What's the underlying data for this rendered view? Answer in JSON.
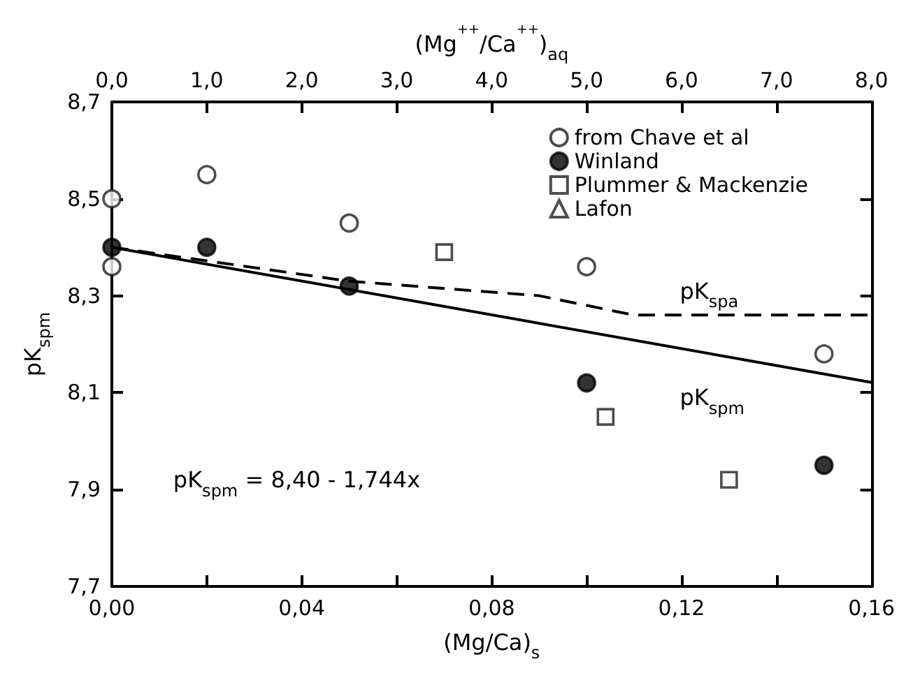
{
  "chart_data": {
    "type": "scatter",
    "xlabel": "(Mg/Ca)$_{s}$",
    "ylabel": "pK$_{spm}$",
    "x2label": "(Mg$^{++}$/Ca$^{++}$)$_{aq}$",
    "xlim": [
      0,
      0.16
    ],
    "xticks": [
      {
        "value": 0,
        "label": "0,00"
      },
      {
        "value": 0.02,
        "label": null
      },
      {
        "value": 0.04,
        "label": "0,04"
      },
      {
        "value": 0.06,
        "label": null
      },
      {
        "value": 0.08,
        "label": "0,08"
      },
      {
        "value": 0.1,
        "label": null
      },
      {
        "value": 0.12,
        "label": "0,12"
      },
      {
        "value": 0.14,
        "label": null
      },
      {
        "value": 0.16,
        "label": "0,16"
      }
    ],
    "x2lim": [
      0,
      8
    ],
    "x2ticks": [
      {
        "value": 0,
        "label": "0,0"
      },
      {
        "value": 1,
        "label": "1,0"
      },
      {
        "value": 2,
        "label": "2,0"
      },
      {
        "value": 3,
        "label": "3,0"
      },
      {
        "value": 4,
        "label": "4,0"
      },
      {
        "value": 5,
        "label": "5,0"
      },
      {
        "value": 6,
        "label": "6,0"
      },
      {
        "value": 7,
        "label": "7,0"
      },
      {
        "value": 8,
        "label": "8,0"
      }
    ],
    "ylim": [
      7.7,
      8.7
    ],
    "yticks": [
      {
        "value": 7.7,
        "label": "7,7"
      },
      {
        "value": 7.9,
        "label": "7,9"
      },
      {
        "value": 8.1,
        "label": "8,1"
      },
      {
        "value": 8.3,
        "label": "8,3"
      },
      {
        "value": 8.5,
        "label": "8,5"
      },
      {
        "value": 8.7,
        "label": "8,7"
      }
    ],
    "grid": false,
    "legend": "top right",
    "series": [
      {
        "name": "from Chave et al",
        "marker": "circle",
        "x": [
          0,
          0,
          0.02,
          0.05,
          0.1,
          0.15
        ],
        "values": [
          8.5,
          8.36,
          8.55,
          8.45,
          8.36,
          8.18
        ]
      },
      {
        "name": "Winland",
        "color": "#000000",
        "marker": "circle",
        "x": [
          0,
          0.02,
          0.05,
          0.1,
          0.15
        ],
        "values": [
          8.4,
          8.4,
          8.32,
          8.12,
          7.95
        ]
      },
      {
        "name": "Plummer & Mackenzie",
        "marker": "square",
        "x": [
          0.07,
          0.104,
          0.13
        ],
        "values": [
          8.39,
          8.05,
          7.92
        ]
      },
      {
        "name": "Lafon",
        "marker": "triangle"
      },
      {
        "type": "line",
        "color": "#000000",
        "line_style": "solid",
        "x": [
          0,
          0.16
        ],
        "values": [
          8.4,
          8.121
        ]
      },
      {
        "type": "line",
        "color": "#000000",
        "line_style": "dashed",
        "x": [
          0,
          0.05,
          0.09,
          0.11,
          0.16
        ],
        "values": [
          8.4,
          8.33,
          8.3,
          8.26,
          8.26
        ]
      }
    ],
    "annotations": [
      "pK$_{spa}$",
      "pK$_{spm}$",
      "pK$_{spm}$ = 8,40 - 1,744x"
    ]
  }
}
